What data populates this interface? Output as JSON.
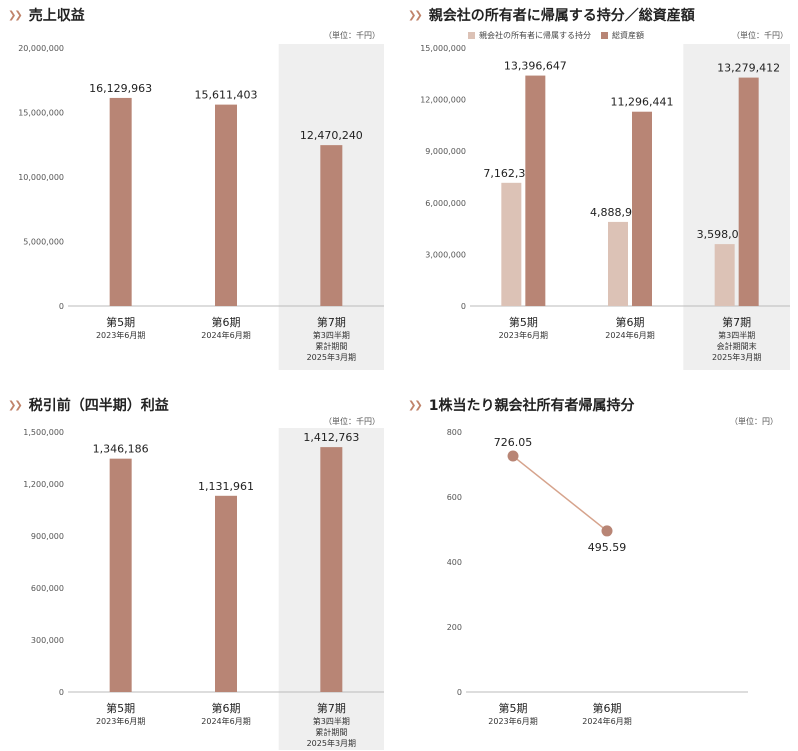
{
  "colors": {
    "bar": "#b88575",
    "bar_light": "#dcc2b6",
    "highlight_bg": "#efefef",
    "line": "#d6a38c",
    "accent": "#c0836b"
  },
  "charts": [
    {
      "title": "売上収益",
      "unit": "（単位：千円）",
      "legend": []
    },
    {
      "title": "親会社の所有者に帰属する持分／総資産額",
      "unit": "（単位：千円）",
      "legend": [
        {
          "label": "親会社の所有者に帰属する持分",
          "color": "#dcc2b6"
        },
        {
          "label": "総資産額",
          "color": "#b88575"
        }
      ]
    },
    {
      "title": "税引前（四半期）利益",
      "unit": "（単位：千円）",
      "legend": []
    },
    {
      "title": "1株当たり親会社所有者帰属持分",
      "unit": "（単位：円）",
      "legend": []
    }
  ],
  "chart_data": [
    {
      "type": "bar",
      "title": "売上収益",
      "categories": [
        "第5期",
        "第6期",
        "第7期"
      ],
      "category_sublabels": [
        [
          "2023年6月期"
        ],
        [
          "2024年6月期"
        ],
        [
          "第3四半期",
          "累計期間",
          "2025年3月期"
        ]
      ],
      "series": [
        {
          "values": [
            16129963,
            15611403,
            12470240
          ]
        }
      ],
      "value_labels": [
        "16,129,963",
        "15,611,403",
        "12,470,240"
      ],
      "yticks": [
        "20,000,000",
        "15,000,000",
        "10,000,000",
        "5,000,000",
        "0"
      ],
      "ylim": [
        0,
        20000000
      ],
      "highlight_category": 2,
      "unit": "千円"
    },
    {
      "type": "bar",
      "title": "親会社の所有者に帰属する持分／総資産額",
      "categories": [
        "第5期",
        "第6期",
        "第7期"
      ],
      "category_sublabels": [
        [
          "2023年6月期"
        ],
        [
          "2024年6月期"
        ],
        [
          "第3四半期",
          "会計期間末",
          "2025年3月期"
        ]
      ],
      "series": [
        {
          "name": "親会社の所有者に帰属する持分",
          "values": [
            7162324,
            4888927,
            3598078
          ]
        },
        {
          "name": "総資産額",
          "values": [
            13396647,
            11296441,
            13279412
          ]
        }
      ],
      "value_labels": [
        [
          "7,162,324",
          "4,888,927",
          "3,598,078"
        ],
        [
          "13,396,647",
          "11,296,441",
          "13,279,412"
        ]
      ],
      "yticks": [
        "15,000,000",
        "12,000,000",
        "9,000,000",
        "6,000,000",
        "3,000,000",
        "0"
      ],
      "ylim": [
        0,
        15000000
      ],
      "highlight_category": 2,
      "legend_position": "top-left",
      "unit": "千円"
    },
    {
      "type": "bar",
      "title": "税引前（四半期）利益",
      "categories": [
        "第5期",
        "第6期",
        "第7期"
      ],
      "category_sublabels": [
        [
          "2023年6月期"
        ],
        [
          "2024年6月期"
        ],
        [
          "第3四半期",
          "累計期間",
          "2025年3月期"
        ]
      ],
      "series": [
        {
          "values": [
            1346186,
            1131961,
            1412763
          ]
        }
      ],
      "value_labels": [
        "1,346,186",
        "1,131,961",
        "1,412,763"
      ],
      "yticks": [
        "1,500,000",
        "1,200,000",
        "900,000",
        "600,000",
        "300,000",
        "0"
      ],
      "ylim": [
        0,
        1500000
      ],
      "highlight_category": 2,
      "unit": "千円"
    },
    {
      "type": "line",
      "title": "1株当たり親会社所有者帰属持分",
      "categories": [
        "第5期",
        "第6期"
      ],
      "category_sublabels": [
        [
          "2023年6月期"
        ],
        [
          "2024年6月期"
        ]
      ],
      "series": [
        {
          "values": [
            726.05,
            495.59
          ]
        }
      ],
      "value_labels": [
        "726.05",
        "495.59"
      ],
      "yticks": [
        "800",
        "600",
        "400",
        "200",
        "0"
      ],
      "ylim": [
        0,
        800
      ],
      "unit": "円"
    }
  ]
}
